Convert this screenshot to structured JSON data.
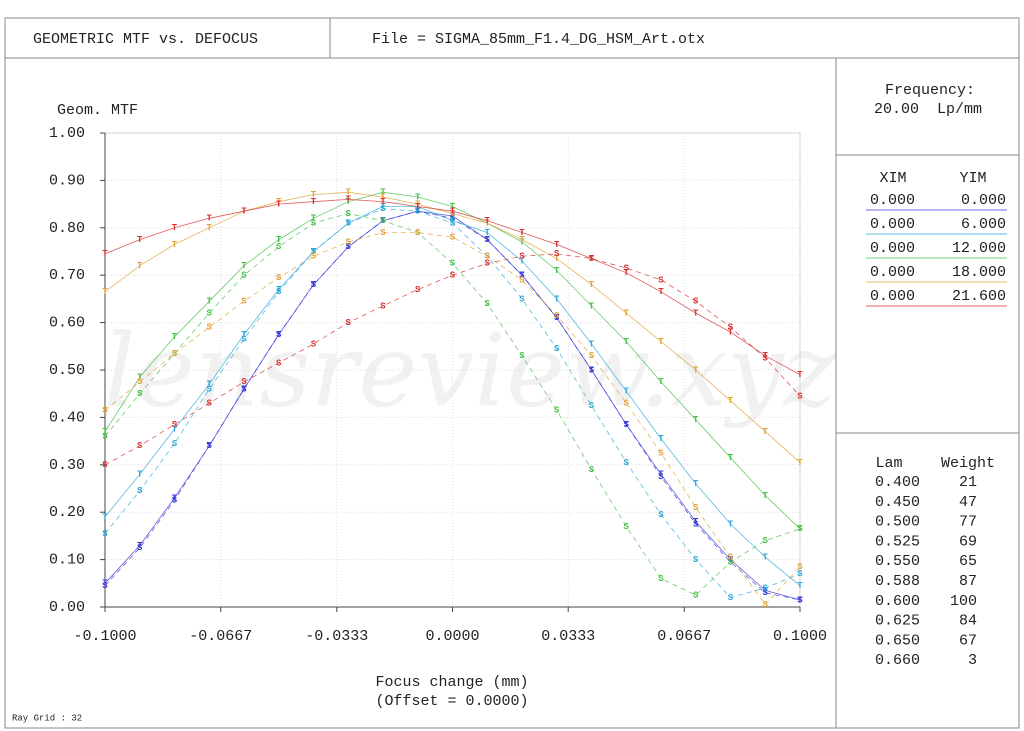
{
  "header": {
    "title": "GEOMETRIC MTF vs. DEFOCUS",
    "file": "File = SIGMA_85mm_F1.4_DG_HSM_Art.otx"
  },
  "frequency": {
    "label": "Frequency:",
    "value": "20.00  Lp/mm"
  },
  "fields": {
    "columns": [
      "XIM",
      "YIM"
    ],
    "rows": [
      {
        "xim": "0.000",
        "yim": "0.000",
        "color": "#3a3ad8"
      },
      {
        "xim": "0.000",
        "yim": "6.000",
        "color": "#2aa8d8"
      },
      {
        "xim": "0.000",
        "yim": "12.000",
        "color": "#44c044"
      },
      {
        "xim": "0.000",
        "yim": "18.000",
        "color": "#e0a030"
      },
      {
        "xim": "0.000",
        "yim": "21.600",
        "color": "#d83030"
      }
    ]
  },
  "wavelengths": {
    "columns": [
      "Lam",
      "Weight"
    ],
    "rows": [
      [
        "0.400",
        "21"
      ],
      [
        "0.450",
        "47"
      ],
      [
        "0.500",
        "77"
      ],
      [
        "0.525",
        "69"
      ],
      [
        "0.550",
        "65"
      ],
      [
        "0.588",
        "87"
      ],
      [
        "0.600",
        "100"
      ],
      [
        "0.625",
        "84"
      ],
      [
        "0.650",
        "67"
      ],
      [
        "0.660",
        "3"
      ]
    ]
  },
  "footer": "Ray Grid : 32",
  "watermark": "lensreview.xyz",
  "chart_data": {
    "type": "line",
    "y_label": "Geom. MTF",
    "x_label": "Focus change (mm)",
    "x_sublabel": "(Offset = 0.0000)",
    "x": [
      -0.1,
      -0.09,
      -0.08,
      -0.07,
      -0.06,
      -0.05,
      -0.04,
      -0.03,
      -0.02,
      -0.01,
      0,
      0.01,
      0.02,
      0.03,
      0.04,
      0.05,
      0.06,
      0.07,
      0.08,
      0.09,
      0.1
    ],
    "xlim": [
      -0.1,
      0.1
    ],
    "ylim": [
      0,
      1
    ],
    "xticks": [
      {
        "value": -0.1,
        "label": "-0.1000"
      },
      {
        "value": -0.0667,
        "label": "-0.0667"
      },
      {
        "value": -0.0333,
        "label": "-0.0333"
      },
      {
        "value": 0,
        "label": "0.0000"
      },
      {
        "value": 0.0333,
        "label": "0.0333"
      },
      {
        "value": 0.0667,
        "label": "0.0667"
      },
      {
        "value": 0.1,
        "label": "0.1000"
      }
    ],
    "yticks": [
      {
        "value": 0,
        "label": "0.00"
      },
      {
        "value": 0.1,
        "label": "0.10"
      },
      {
        "value": 0.2,
        "label": "0.20"
      },
      {
        "value": 0.3,
        "label": "0.30"
      },
      {
        "value": 0.4,
        "label": "0.40"
      },
      {
        "value": 0.5,
        "label": "0.50"
      },
      {
        "value": 0.6,
        "label": "0.60"
      },
      {
        "value": 0.7,
        "label": "0.70"
      },
      {
        "value": 0.8,
        "label": "0.80"
      },
      {
        "value": 0.9,
        "label": "0.90"
      },
      {
        "value": 1,
        "label": "1.00"
      }
    ],
    "grid": true,
    "series": [
      {
        "marker": "T",
        "line_style": "solid",
        "color": "#3a3ad8",
        "values": [
          0.05,
          0.13,
          0.23,
          0.34,
          0.46,
          0.575,
          0.68,
          0.76,
          0.815,
          0.835,
          0.825,
          0.775,
          0.7,
          0.61,
          0.5,
          0.385,
          0.28,
          0.18,
          0.1,
          0.035,
          0.015
        ]
      },
      {
        "marker": "S",
        "line_style": "dashed",
        "color": "#3a3ad8",
        "values": [
          0.045,
          0.125,
          0.225,
          0.34,
          0.46,
          0.575,
          0.68,
          0.76,
          0.815,
          0.835,
          0.82,
          0.775,
          0.7,
          0.61,
          0.5,
          0.385,
          0.275,
          0.175,
          0.095,
          0.03,
          0.015
        ]
      },
      {
        "marker": "T",
        "line_style": "solid",
        "color": "#2aa8d8",
        "values": [
          0.19,
          0.28,
          0.375,
          0.47,
          0.575,
          0.67,
          0.75,
          0.81,
          0.845,
          0.845,
          0.815,
          0.79,
          0.73,
          0.65,
          0.555,
          0.455,
          0.355,
          0.26,
          0.175,
          0.105,
          0.045
        ]
      },
      {
        "marker": "S",
        "line_style": "dashed",
        "color": "#2aa8d8",
        "values": [
          0.155,
          0.245,
          0.345,
          0.46,
          0.565,
          0.665,
          0.75,
          0.81,
          0.84,
          0.835,
          0.81,
          0.74,
          0.65,
          0.545,
          0.425,
          0.305,
          0.195,
          0.1,
          0.02,
          0.04,
          0.07
        ]
      },
      {
        "marker": "T",
        "line_style": "solid",
        "color": "#44c044",
        "values": [
          0.37,
          0.485,
          0.57,
          0.645,
          0.72,
          0.775,
          0.82,
          0.855,
          0.875,
          0.865,
          0.845,
          0.81,
          0.77,
          0.71,
          0.635,
          0.56,
          0.475,
          0.395,
          0.315,
          0.235,
          0.165
        ]
      },
      {
        "marker": "S",
        "line_style": "dashed",
        "color": "#44c044",
        "values": [
          0.36,
          0.45,
          0.535,
          0.62,
          0.7,
          0.76,
          0.81,
          0.83,
          0.815,
          0.79,
          0.725,
          0.64,
          0.53,
          0.415,
          0.29,
          0.17,
          0.06,
          0.025,
          0.095,
          0.14,
          0.165
        ]
      },
      {
        "marker": "T",
        "line_style": "solid",
        "color": "#e0a030",
        "values": [
          0.665,
          0.72,
          0.765,
          0.8,
          0.835,
          0.855,
          0.87,
          0.875,
          0.865,
          0.85,
          0.83,
          0.81,
          0.775,
          0.735,
          0.68,
          0.62,
          0.56,
          0.5,
          0.435,
          0.37,
          0.305
        ]
      },
      {
        "marker": "S",
        "line_style": "dashed",
        "color": "#e0a030",
        "values": [
          0.415,
          0.475,
          0.535,
          0.59,
          0.645,
          0.695,
          0.74,
          0.77,
          0.79,
          0.79,
          0.78,
          0.74,
          0.69,
          0.615,
          0.53,
          0.43,
          0.325,
          0.21,
          0.105,
          0.005,
          0.085
        ]
      },
      {
        "marker": "T",
        "line_style": "solid",
        "color": "#d83030",
        "values": [
          0.745,
          0.775,
          0.8,
          0.82,
          0.835,
          0.85,
          0.855,
          0.86,
          0.855,
          0.845,
          0.835,
          0.815,
          0.79,
          0.765,
          0.735,
          0.705,
          0.665,
          0.62,
          0.58,
          0.53,
          0.49
        ]
      },
      {
        "marker": "S",
        "line_style": "dashed",
        "color": "#d83030",
        "values": [
          0.3,
          0.34,
          0.385,
          0.43,
          0.475,
          0.515,
          0.555,
          0.6,
          0.635,
          0.67,
          0.7,
          0.725,
          0.74,
          0.745,
          0.735,
          0.715,
          0.69,
          0.645,
          0.59,
          0.525,
          0.445
        ]
      }
    ]
  }
}
